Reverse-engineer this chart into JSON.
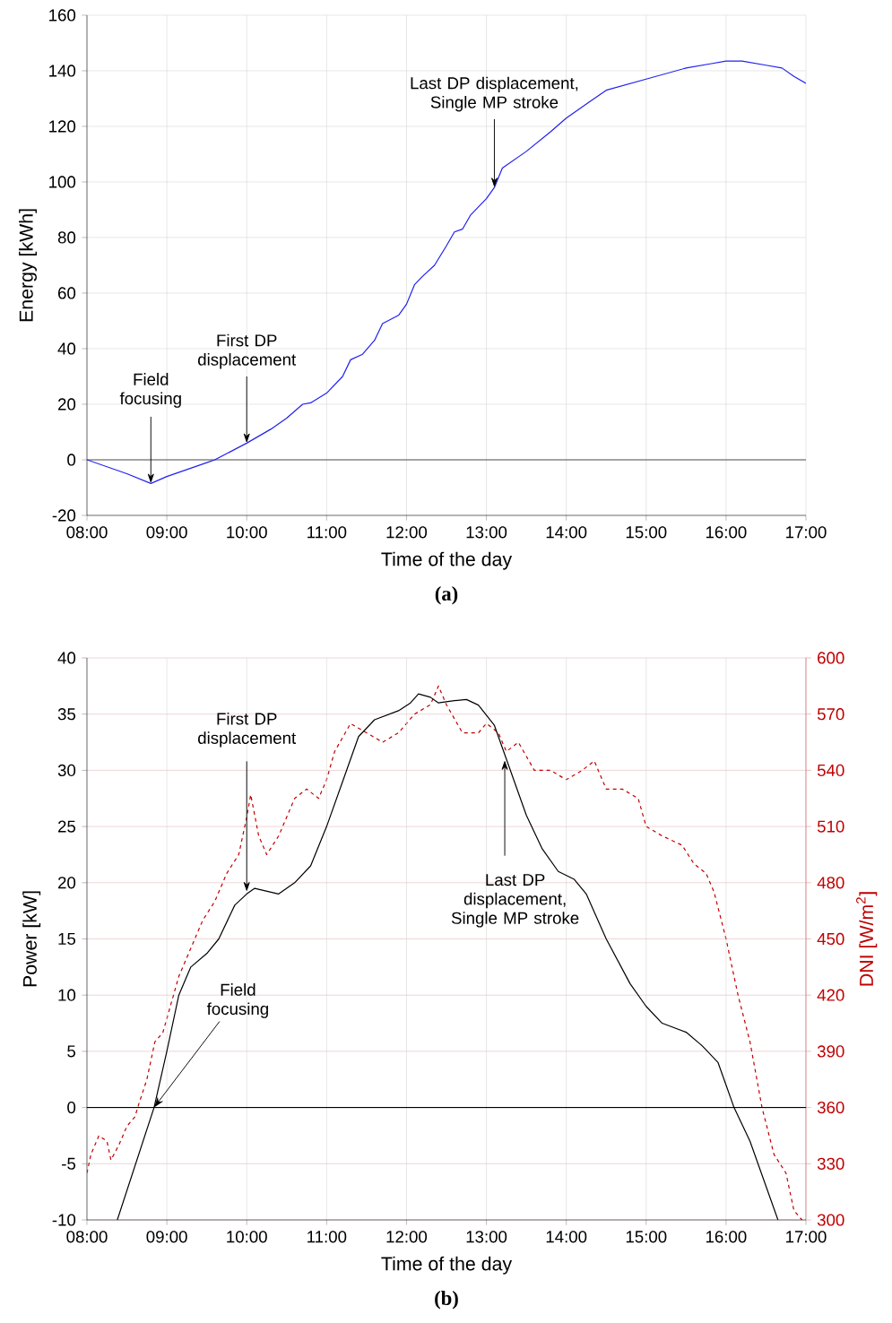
{
  "chart_data": [
    {
      "type": "line",
      "title": "(a)",
      "xlabel": "Time of the day",
      "ylabel": "Energy [kWh]",
      "xlim": [
        8,
        17
      ],
      "xticks": [
        {
          "value": 8,
          "label": "08:00"
        },
        {
          "value": 9,
          "label": "09:00"
        },
        {
          "value": 10,
          "label": "10:00"
        },
        {
          "value": 11,
          "label": "11:00"
        },
        {
          "value": 12,
          "label": "12:00"
        },
        {
          "value": 13,
          "label": "13:00"
        },
        {
          "value": 14,
          "label": "14:00"
        },
        {
          "value": 15,
          "label": "15:00"
        },
        {
          "value": 16,
          "label": "16:00"
        },
        {
          "value": 17,
          "label": "17:00"
        }
      ],
      "ylim": [
        -20,
        160
      ],
      "yticks": [
        -20,
        0,
        20,
        40,
        60,
        80,
        100,
        120,
        140,
        160
      ],
      "grid": true,
      "ref_lines": [
        {
          "axis": "y",
          "value": 0,
          "color": "#555555"
        }
      ],
      "annotations": [
        {
          "text": "Field focusing",
          "x": 8.8,
          "y": -8.5
        },
        {
          "text": "First DP displacement",
          "x": 10.0,
          "y": 6
        },
        {
          "text": "Last DP displacement, Single MP stroke",
          "x": 13.1,
          "y": 98
        }
      ],
      "series": [
        {
          "color": "#2020f0",
          "line_style": "solid",
          "x": [
            8,
            8.5,
            8.8,
            9.0,
            9.5,
            9.6,
            10.0,
            10.3,
            10.5,
            10.7,
            10.8,
            11.0,
            11.2,
            11.3,
            11.45,
            11.6,
            11.7,
            11.9,
            12.0,
            12.1,
            12.2,
            12.35,
            12.5,
            12.6,
            12.7,
            12.8,
            13.0,
            13.1,
            13.2,
            13.5,
            13.8,
            14.0,
            14.3,
            14.5,
            15.0,
            15.5,
            15.8,
            16.0,
            16.2,
            16.5,
            16.7,
            16.85,
            17.0
          ],
          "values": [
            0,
            -5,
            -8.5,
            -6,
            -1,
            0,
            6,
            11,
            15,
            20,
            20.5,
            24,
            30,
            36,
            38,
            43,
            49,
            52,
            56,
            63,
            66,
            70,
            77,
            82,
            83,
            88,
            94,
            98,
            105,
            111,
            118,
            123,
            129,
            133,
            137,
            141,
            142.5,
            143.5,
            143.5,
            142,
            141,
            138,
            135.5
          ]
        }
      ]
    },
    {
      "type": "line",
      "title": "(b)",
      "xlabel": "Time of the day",
      "ylabel": "Power [kW]",
      "y2label": "DNI [W/m$^{2}$]",
      "xlim": [
        8,
        17
      ],
      "xticks": [
        {
          "value": 8,
          "label": "08:00"
        },
        {
          "value": 9,
          "label": "09:00"
        },
        {
          "value": 10,
          "label": "10:00"
        },
        {
          "value": 11,
          "label": "11:00"
        },
        {
          "value": 12,
          "label": "12:00"
        },
        {
          "value": 13,
          "label": "13:00"
        },
        {
          "value": 14,
          "label": "14:00"
        },
        {
          "value": 15,
          "label": "15:00"
        },
        {
          "value": 16,
          "label": "16:00"
        },
        {
          "value": 17,
          "label": "17:00"
        }
      ],
      "ylim": [
        -10,
        40
      ],
      "yticks": [
        -10,
        -5,
        0,
        5,
        10,
        15,
        20,
        25,
        30,
        35,
        40
      ],
      "y2lim": [
        300,
        600
      ],
      "y2ticks": [
        300,
        330,
        360,
        390,
        420,
        450,
        480,
        510,
        540,
        570,
        600
      ],
      "grid": true,
      "ref_lines": [
        {
          "axis": "y",
          "value": 0,
          "color": "#000000"
        }
      ],
      "annotations": [
        {
          "text": "First DP displacement",
          "x": 10.0,
          "y": 19.2
        },
        {
          "text": "Field focusing",
          "x": 8.84,
          "y": 0
        },
        {
          "text": "Last DP displacement, Single MP stroke",
          "x": 13.23,
          "y": 30.9
        }
      ],
      "series": [
        {
          "color": "#000000",
          "line_style": "solid",
          "x": [
            8.38,
            8.84,
            9.0,
            9.15,
            9.3,
            9.5,
            9.65,
            9.85,
            10.0,
            10.1,
            10.4,
            10.6,
            10.8,
            11.0,
            11.2,
            11.4,
            11.6,
            11.9,
            12.05,
            12.15,
            12.3,
            12.4,
            12.6,
            12.75,
            12.9,
            13.1,
            13.3,
            13.5,
            13.7,
            13.9,
            14.1,
            14.25,
            14.5,
            14.8,
            15.0,
            15.2,
            15.5,
            15.7,
            15.9,
            16.0,
            16.1,
            16.3,
            16.65
          ],
          "values": [
            -10,
            0,
            5,
            10,
            12.5,
            13.7,
            15,
            18,
            19,
            19.5,
            19,
            20,
            21.5,
            25,
            29,
            33,
            34.5,
            35.3,
            36,
            36.8,
            36.5,
            36,
            36.2,
            36.3,
            35.8,
            34,
            30,
            26,
            23,
            21,
            20.3,
            19,
            15,
            11,
            9,
            7.5,
            6.7,
            5.5,
            4,
            2,
            0,
            -3,
            -10
          ]
        },
        {
          "color": "#c00000",
          "line_style": "dashed",
          "axis": "y2",
          "x": [
            8.0,
            8.05,
            8.15,
            8.25,
            8.3,
            8.4,
            8.5,
            8.6,
            8.65,
            8.75,
            8.85,
            8.95,
            9.05,
            9.15,
            9.3,
            9.45,
            9.6,
            9.75,
            9.9,
            10.0,
            10.05,
            10.15,
            10.25,
            10.4,
            10.6,
            10.75,
            10.9,
            11.0,
            11.1,
            11.3,
            11.5,
            11.7,
            11.9,
            12.1,
            12.3,
            12.4,
            12.5,
            12.7,
            12.9,
            13.0,
            13.15,
            13.25,
            13.4,
            13.6,
            13.8,
            14.0,
            14.2,
            14.35,
            14.5,
            14.7,
            14.9,
            15.0,
            15.2,
            15.45,
            15.6,
            15.75,
            15.85,
            16.0,
            16.15,
            16.3,
            16.45,
            16.6,
            16.75,
            16.85,
            16.95
          ],
          "values": [
            325,
            335,
            345,
            342,
            332,
            340,
            350,
            355,
            362,
            375,
            395,
            400,
            415,
            430,
            445,
            460,
            470,
            485,
            495,
            515,
            527,
            505,
            495,
            505,
            525,
            530,
            525,
            535,
            550,
            565,
            560,
            555,
            560,
            570,
            575,
            585,
            575,
            560,
            560,
            565,
            560,
            550,
            555,
            540,
            540,
            535,
            540,
            545,
            530,
            530,
            525,
            510,
            505,
            500,
            490,
            485,
            475,
            450,
            420,
            395,
            360,
            335,
            325,
            305,
            300
          ]
        }
      ]
    }
  ]
}
